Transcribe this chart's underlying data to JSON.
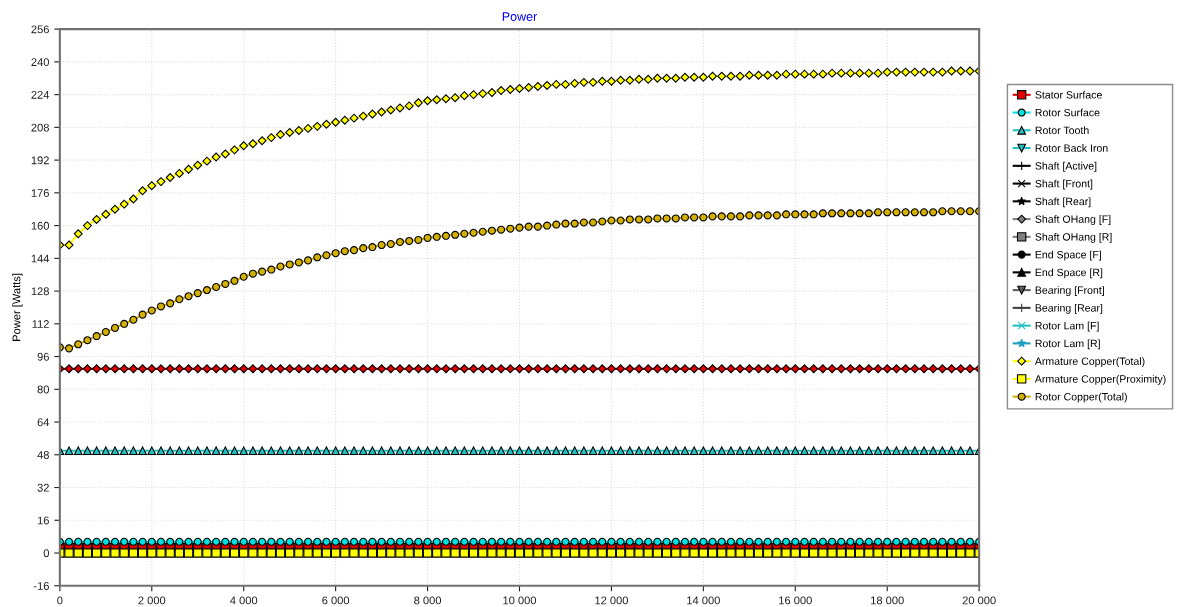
{
  "chart_data": {
    "type": "line",
    "title": "Power",
    "ylabel": "Power [Watts]",
    "x": [
      0,
      200,
      400,
      600,
      800,
      1000,
      1200,
      1400,
      1600,
      1800,
      2000,
      2200,
      2400,
      2600,
      2800,
      3000,
      3200,
      3400,
      3600,
      3800,
      4000,
      4200,
      4400,
      4600,
      4800,
      5000,
      5200,
      5400,
      5600,
      5800,
      6000,
      6200,
      6400,
      6600,
      6800,
      7000,
      7200,
      7400,
      7600,
      7800,
      8000,
      8200,
      8400,
      8600,
      8800,
      9000,
      9200,
      9400,
      9600,
      9800,
      10000,
      10200,
      10400,
      10600,
      10800,
      11000,
      11200,
      11400,
      11600,
      11800,
      12000,
      12200,
      12400,
      12600,
      12800,
      13000,
      13200,
      13400,
      13600,
      13800,
      14000,
      14200,
      14400,
      14600,
      14800,
      15000,
      15200,
      15400,
      15600,
      15800,
      16000,
      16200,
      16400,
      16600,
      16800,
      17000,
      17200,
      17400,
      17600,
      17800,
      18000,
      18200,
      18400,
      18600,
      18800,
      19000,
      19200,
      19400,
      19600,
      19800,
      20000
    ],
    "xlim": [
      0,
      20000
    ],
    "xticks": [
      0,
      {
        "value": 2000,
        "label": "2 000"
      },
      {
        "value": 4000,
        "label": "4 000"
      },
      {
        "value": 6000,
        "label": "6 000"
      },
      {
        "value": 8000,
        "label": "8 000"
      },
      {
        "value": 10000,
        "label": "10 000"
      },
      {
        "value": 12000,
        "label": "12 000"
      },
      {
        "value": 14000,
        "label": "14 000"
      },
      {
        "value": 16000,
        "label": "16 000"
      },
      {
        "value": 18000,
        "label": "18 000"
      },
      {
        "value": 20000,
        "label": "20 000"
      }
    ],
    "ylim": [
      -16,
      256
    ],
    "yticks": [
      -16,
      0,
      16,
      32,
      48,
      64,
      80,
      96,
      112,
      128,
      144,
      160,
      176,
      192,
      208,
      224,
      240,
      256
    ],
    "grid": true,
    "legend": "right",
    "series": [
      {
        "color": "#e00000",
        "marker": "diamond",
        "values": [
          90,
          90,
          90,
          90,
          90,
          90,
          90,
          90,
          90,
          90,
          90,
          90,
          90,
          90,
          90,
          90,
          90,
          90,
          90,
          90,
          90,
          90,
          90,
          90,
          90,
          90,
          90,
          90,
          90,
          90,
          90,
          90,
          90,
          90,
          90,
          90,
          90,
          90,
          90,
          90,
          90,
          90,
          90,
          90,
          90,
          90,
          90,
          90,
          90,
          90,
          90,
          90,
          90,
          90,
          90,
          90,
          90,
          90,
          90,
          90,
          90,
          90,
          90,
          90,
          90,
          90,
          90,
          90,
          90,
          90,
          90,
          90,
          90,
          90,
          90,
          90,
          90,
          90,
          90,
          90,
          90,
          90,
          90,
          90,
          90,
          90,
          90,
          90,
          90,
          90,
          90,
          90,
          90,
          90,
          90,
          90,
          90,
          90,
          90,
          90,
          90
        ]
      },
      {
        "name": "Stator Surface",
        "color": "#e00000",
        "marker": "square",
        "values": [
          3,
          3,
          3,
          3,
          3,
          3,
          3,
          3,
          3,
          3,
          3,
          3,
          3,
          3,
          3,
          3,
          3,
          3,
          3,
          3,
          3,
          3,
          3,
          3,
          3,
          3,
          3,
          3,
          3,
          3,
          3,
          3,
          3,
          3,
          3,
          3,
          3,
          3,
          3,
          3,
          3,
          3,
          3,
          3,
          3,
          3,
          3,
          3,
          3,
          3,
          3,
          3,
          3,
          3,
          3,
          3,
          3,
          3,
          3,
          3,
          3,
          3,
          3,
          3,
          3,
          3,
          3,
          3,
          3,
          3,
          3,
          3,
          3,
          3,
          3,
          3,
          3,
          3,
          3,
          3,
          3,
          3,
          3,
          3,
          3,
          3,
          3,
          3,
          3,
          3,
          3,
          3,
          3,
          3,
          3,
          3,
          3,
          3,
          3,
          3,
          3
        ]
      },
      {
        "name": "Rotor Surface",
        "color": "#00e0e0",
        "marker": "circle",
        "values": [
          5.5,
          5.5,
          5.5,
          5.5,
          5.5,
          5.5,
          5.5,
          5.5,
          5.5,
          5.5,
          5.5,
          5.5,
          5.5,
          5.5,
          5.5,
          5.5,
          5.5,
          5.5,
          5.5,
          5.5,
          5.5,
          5.5,
          5.5,
          5.5,
          5.5,
          5.5,
          5.5,
          5.5,
          5.5,
          5.5,
          5.5,
          5.5,
          5.5,
          5.5,
          5.5,
          5.5,
          5.5,
          5.5,
          5.5,
          5.5,
          5.5,
          5.5,
          5.5,
          5.5,
          5.5,
          5.5,
          5.5,
          5.5,
          5.5,
          5.5,
          5.5,
          5.5,
          5.5,
          5.5,
          5.5,
          5.5,
          5.5,
          5.5,
          5.5,
          5.5,
          5.5,
          5.5,
          5.5,
          5.5,
          5.5,
          5.5,
          5.5,
          5.5,
          5.5,
          5.5,
          5.5,
          5.5,
          5.5,
          5.5,
          5.5,
          5.5,
          5.5,
          5.5,
          5.5,
          5.5,
          5.5,
          5.5,
          5.5,
          5.5,
          5.5,
          5.5,
          5.5,
          5.5,
          5.5,
          5.5,
          5.5,
          5.5,
          5.5,
          5.5,
          5.5,
          5.5,
          5.5,
          5.5,
          5.5,
          5.5,
          5.5
        ]
      },
      {
        "name": "Rotor Tooth",
        "color": "#20c0c0",
        "marker": "triangle",
        "values": [
          50,
          50,
          50,
          50,
          50,
          50,
          50,
          50,
          50,
          50,
          50,
          50,
          50,
          50,
          50,
          50,
          50,
          50,
          50,
          50,
          50,
          50,
          50,
          50,
          50,
          50,
          50,
          50,
          50,
          50,
          50,
          50,
          50,
          50,
          50,
          50,
          50,
          50,
          50,
          50,
          50,
          50,
          50,
          50,
          50,
          50,
          50,
          50,
          50,
          50,
          50,
          50,
          50,
          50,
          50,
          50,
          50,
          50,
          50,
          50,
          50,
          50,
          50,
          50,
          50,
          50,
          50,
          50,
          50,
          50,
          50,
          50,
          50,
          50,
          50,
          50,
          50,
          50,
          50,
          50,
          50,
          50,
          50,
          50,
          50,
          50,
          50,
          50,
          50,
          50,
          50,
          50,
          50,
          50,
          50,
          50,
          50,
          50,
          50,
          50,
          50
        ]
      },
      {
        "name": "Rotor Back Iron",
        "color": "#20c0c0",
        "marker": "triangle_down",
        "values": [
          null,
          null,
          null,
          null,
          null,
          null,
          null,
          null,
          null,
          null,
          null,
          null,
          null,
          null,
          null,
          null,
          null,
          null,
          null,
          null,
          null,
          null,
          null,
          null,
          null,
          null,
          null,
          null,
          null,
          null,
          null,
          null,
          null,
          null,
          null,
          null,
          null,
          null,
          null,
          null,
          null,
          null,
          null,
          null,
          null,
          null,
          null,
          null,
          null,
          null,
          null,
          null,
          null,
          null,
          null,
          null,
          null,
          null,
          null,
          null,
          null,
          null,
          null,
          null,
          null,
          null,
          null,
          null,
          null,
          null,
          null,
          null,
          null,
          null,
          null,
          null,
          null,
          null,
          null,
          null,
          null,
          null,
          null,
          null,
          null,
          null,
          null,
          null,
          null,
          null,
          null,
          null,
          null,
          null,
          null,
          null,
          null,
          null,
          null,
          null,
          null
        ]
      },
      {
        "name": "Shaft [Active]",
        "color": "#000000",
        "marker": "plus",
        "values": [
          null,
          null,
          null,
          null,
          null,
          null,
          null,
          null,
          null,
          null,
          null,
          null,
          null,
          null,
          null,
          null,
          null,
          null,
          null,
          null,
          null,
          null,
          null,
          null,
          null,
          null,
          null,
          null,
          null,
          null,
          null,
          null,
          null,
          null,
          null,
          null,
          null,
          null,
          null,
          null,
          null,
          null,
          null,
          null,
          null,
          null,
          null,
          null,
          null,
          null,
          null,
          null,
          null,
          null,
          null,
          null,
          null,
          null,
          null,
          null,
          null,
          null,
          null,
          null,
          null,
          null,
          null,
          null,
          null,
          null,
          null,
          null,
          null,
          null,
          null,
          null,
          null,
          null,
          null,
          null,
          null,
          null,
          null,
          null,
          null,
          null,
          null,
          null,
          null,
          null,
          null,
          null,
          null,
          null,
          null,
          null,
          null,
          null,
          null,
          null,
          null
        ]
      },
      {
        "name": "Shaft [Front]",
        "color": "#000000",
        "marker": "x",
        "values": [
          null,
          null,
          null,
          null,
          null,
          null,
          null,
          null,
          null,
          null,
          null,
          null,
          null,
          null,
          null,
          null,
          null,
          null,
          null,
          null,
          null,
          null,
          null,
          null,
          null,
          null,
          null,
          null,
          null,
          null,
          null,
          null,
          null,
          null,
          null,
          null,
          null,
          null,
          null,
          null,
          null,
          null,
          null,
          null,
          null,
          null,
          null,
          null,
          null,
          null,
          null,
          null,
          null,
          null,
          null,
          null,
          null,
          null,
          null,
          null,
          null,
          null,
          null,
          null,
          null,
          null,
          null,
          null,
          null,
          null,
          null,
          null,
          null,
          null,
          null,
          null,
          null,
          null,
          null,
          null,
          null,
          null,
          null,
          null,
          null,
          null,
          null,
          null,
          null,
          null,
          null,
          null,
          null,
          null,
          null,
          null,
          null,
          null,
          null,
          null,
          null
        ]
      },
      {
        "name": "Shaft [Rear]",
        "color": "#000000",
        "marker": "star",
        "values": [
          null,
          null,
          null,
          null,
          null,
          null,
          null,
          null,
          null,
          null,
          null,
          null,
          null,
          null,
          null,
          null,
          null,
          null,
          null,
          null,
          null,
          null,
          null,
          null,
          null,
          null,
          null,
          null,
          null,
          null,
          null,
          null,
          null,
          null,
          null,
          null,
          null,
          null,
          null,
          null,
          null,
          null,
          null,
          null,
          null,
          null,
          null,
          null,
          null,
          null,
          null,
          null,
          null,
          null,
          null,
          null,
          null,
          null,
          null,
          null,
          null,
          null,
          null,
          null,
          null,
          null,
          null,
          null,
          null,
          null,
          null,
          null,
          null,
          null,
          null,
          null,
          null,
          null,
          null,
          null,
          null,
          null,
          null,
          null,
          null,
          null,
          null,
          null,
          null,
          null,
          null,
          null,
          null,
          null,
          null,
          null,
          null,
          null,
          null,
          null,
          null
        ]
      },
      {
        "name": "Shaft OHang [F]",
        "color": "#808080",
        "marker": "diamond",
        "values": [
          null,
          null,
          null,
          null,
          null,
          null,
          null,
          null,
          null,
          null,
          null,
          null,
          null,
          null,
          null,
          null,
          null,
          null,
          null,
          null,
          null,
          null,
          null,
          null,
          null,
          null,
          null,
          null,
          null,
          null,
          null,
          null,
          null,
          null,
          null,
          null,
          null,
          null,
          null,
          null,
          null,
          null,
          null,
          null,
          null,
          null,
          null,
          null,
          null,
          null,
          null,
          null,
          null,
          null,
          null,
          null,
          null,
          null,
          null,
          null,
          null,
          null,
          null,
          null,
          null,
          null,
          null,
          null,
          null,
          null,
          null,
          null,
          null,
          null,
          null,
          null,
          null,
          null,
          null,
          null,
          null,
          null,
          null,
          null,
          null,
          null,
          null,
          null,
          null,
          null,
          null,
          null,
          null,
          null,
          null,
          null,
          null,
          null,
          null,
          null,
          null
        ]
      },
      {
        "name": "Shaft OHang [R]",
        "color": "#808080",
        "marker": "square",
        "values": [
          null,
          null,
          null,
          null,
          null,
          null,
          null,
          null,
          null,
          null,
          null,
          null,
          null,
          null,
          null,
          null,
          null,
          null,
          null,
          null,
          null,
          null,
          null,
          null,
          null,
          null,
          null,
          null,
          null,
          null,
          null,
          null,
          null,
          null,
          null,
          null,
          null,
          null,
          null,
          null,
          null,
          null,
          null,
          null,
          null,
          null,
          null,
          null,
          null,
          null,
          null,
          null,
          null,
          null,
          null,
          null,
          null,
          null,
          null,
          null,
          null,
          null,
          null,
          null,
          null,
          null,
          null,
          null,
          null,
          null,
          null,
          null,
          null,
          null,
          null,
          null,
          null,
          null,
          null,
          null,
          null,
          null,
          null,
          null,
          null,
          null,
          null,
          null,
          null,
          null,
          null,
          null,
          null,
          null,
          null,
          null,
          null,
          null,
          null,
          null,
          null
        ]
      },
      {
        "name": "End Space [F]",
        "color": "#000000",
        "marker": "circle",
        "values": [
          null,
          null,
          null,
          null,
          null,
          null,
          null,
          null,
          null,
          null,
          null,
          null,
          null,
          null,
          null,
          null,
          null,
          null,
          null,
          null,
          null,
          null,
          null,
          null,
          null,
          null,
          null,
          null,
          null,
          null,
          null,
          null,
          null,
          null,
          null,
          null,
          null,
          null,
          null,
          null,
          null,
          null,
          null,
          null,
          null,
          null,
          null,
          null,
          null,
          null,
          null,
          null,
          null,
          null,
          null,
          null,
          null,
          null,
          null,
          null,
          null,
          null,
          null,
          null,
          null,
          null,
          null,
          null,
          null,
          null,
          null,
          null,
          null,
          null,
          null,
          null,
          null,
          null,
          null,
          null,
          null,
          null,
          null,
          null,
          null,
          null,
          null,
          null,
          null,
          null,
          null,
          null,
          null,
          null,
          null,
          null,
          null,
          null,
          null,
          null,
          null
        ]
      },
      {
        "name": "End Space [R]",
        "color": "#000000",
        "marker": "triangle",
        "values": [
          null,
          null,
          null,
          null,
          null,
          null,
          null,
          null,
          null,
          null,
          null,
          null,
          null,
          null,
          null,
          null,
          null,
          null,
          null,
          null,
          null,
          null,
          null,
          null,
          null,
          null,
          null,
          null,
          null,
          null,
          null,
          null,
          null,
          null,
          null,
          null,
          null,
          null,
          null,
          null,
          null,
          null,
          null,
          null,
          null,
          null,
          null,
          null,
          null,
          null,
          null,
          null,
          null,
          null,
          null,
          null,
          null,
          null,
          null,
          null,
          null,
          null,
          null,
          null,
          null,
          null,
          null,
          null,
          null,
          null,
          null,
          null,
          null,
          null,
          null,
          null,
          null,
          null,
          null,
          null,
          null,
          null,
          null,
          null,
          null,
          null,
          null,
          null,
          null,
          null,
          null,
          null,
          null,
          null,
          null,
          null,
          null,
          null,
          null,
          null,
          null
        ]
      },
      {
        "name": "Bearing [Front]",
        "color": "#606060",
        "marker": "triangle_down",
        "values": [
          null,
          null,
          null,
          null,
          null,
          null,
          null,
          null,
          null,
          null,
          null,
          null,
          null,
          null,
          null,
          null,
          null,
          null,
          null,
          null,
          null,
          null,
          null,
          null,
          null,
          null,
          null,
          null,
          null,
          null,
          null,
          null,
          null,
          null,
          null,
          null,
          null,
          null,
          null,
          null,
          null,
          null,
          null,
          null,
          null,
          null,
          null,
          null,
          null,
          null,
          null,
          null,
          null,
          null,
          null,
          null,
          null,
          null,
          null,
          null,
          null,
          null,
          null,
          null,
          null,
          null,
          null,
          null,
          null,
          null,
          null,
          null,
          null,
          null,
          null,
          null,
          null,
          null,
          null,
          null,
          null,
          null,
          null,
          null,
          null,
          null,
          null,
          null,
          null,
          null,
          null,
          null,
          null,
          null,
          null,
          null,
          null,
          null,
          null,
          null,
          null
        ]
      },
      {
        "name": "Bearing [Rear]",
        "color": "#404040",
        "marker": "plus",
        "values": [
          null,
          null,
          null,
          null,
          null,
          null,
          null,
          null,
          null,
          null,
          null,
          null,
          null,
          null,
          null,
          null,
          null,
          null,
          null,
          null,
          null,
          null,
          null,
          null,
          null,
          null,
          null,
          null,
          null,
          null,
          null,
          null,
          null,
          null,
          null,
          null,
          null,
          null,
          null,
          null,
          null,
          null,
          null,
          null,
          null,
          null,
          null,
          null,
          null,
          null,
          null,
          null,
          null,
          null,
          null,
          null,
          null,
          null,
          null,
          null,
          null,
          null,
          null,
          null,
          null,
          null,
          null,
          null,
          null,
          null,
          null,
          null,
          null,
          null,
          null,
          null,
          null,
          null,
          null,
          null,
          null,
          null,
          null,
          null,
          null,
          null,
          null,
          null,
          null,
          null,
          null,
          null,
          null,
          null,
          null,
          null,
          null,
          null,
          null,
          null,
          null
        ]
      },
      {
        "name": "Rotor Lam [F]",
        "color": "#20c0c0",
        "marker": "x",
        "values": [
          null,
          null,
          null,
          null,
          null,
          null,
          null,
          null,
          null,
          null,
          null,
          null,
          null,
          null,
          null,
          null,
          null,
          null,
          null,
          null,
          null,
          null,
          null,
          null,
          null,
          null,
          null,
          null,
          null,
          null,
          null,
          null,
          null,
          null,
          null,
          null,
          null,
          null,
          null,
          null,
          null,
          null,
          null,
          null,
          null,
          null,
          null,
          null,
          null,
          null,
          null,
          null,
          null,
          null,
          null,
          null,
          null,
          null,
          null,
          null,
          null,
          null,
          null,
          null,
          null,
          null,
          null,
          null,
          null,
          null,
          null,
          null,
          null,
          null,
          null,
          null,
          null,
          null,
          null,
          null,
          null,
          null,
          null,
          null,
          null,
          null,
          null,
          null,
          null,
          null,
          null,
          null,
          null,
          null,
          null,
          null,
          null,
          null,
          null,
          null,
          null
        ]
      },
      {
        "name": "Rotor Lam [R]",
        "color": "#20a0c0",
        "marker": "star",
        "values": [
          null,
          null,
          null,
          null,
          null,
          null,
          null,
          null,
          null,
          null,
          null,
          null,
          null,
          null,
          null,
          null,
          null,
          null,
          null,
          null,
          null,
          null,
          null,
          null,
          null,
          null,
          null,
          null,
          null,
          null,
          null,
          null,
          null,
          null,
          null,
          null,
          null,
          null,
          null,
          null,
          null,
          null,
          null,
          null,
          null,
          null,
          null,
          null,
          null,
          null,
          null,
          null,
          null,
          null,
          null,
          null,
          null,
          null,
          null,
          null,
          null,
          null,
          null,
          null,
          null,
          null,
          null,
          null,
          null,
          null,
          null,
          null,
          null,
          null,
          null,
          null,
          null,
          null,
          null,
          null,
          null,
          null,
          null,
          null,
          null,
          null,
          null,
          null,
          null,
          null,
          null,
          null,
          null,
          null,
          null,
          null,
          null,
          null,
          null,
          null,
          null
        ]
      },
      {
        "name": "Armature Copper(Total)",
        "color": "#ffff00",
        "marker": "diamond",
        "values": [
          150.5,
          150.5,
          156,
          160,
          163,
          165.5,
          168,
          170.5,
          173,
          177,
          179.5,
          181.5,
          183.5,
          185.5,
          187.5,
          189.5,
          191.5,
          193.5,
          195,
          197,
          199,
          200,
          201.5,
          203,
          204.5,
          205.5,
          206.5,
          207.5,
          208.5,
          209.5,
          210.5,
          211.5,
          212.5,
          213.5,
          214.5,
          215.5,
          216.5,
          217.5,
          218.5,
          220,
          221,
          221.5,
          222,
          222.5,
          223.5,
          224,
          224.5,
          225,
          226,
          226.5,
          227,
          227.5,
          228,
          228.5,
          229,
          229,
          229.5,
          230,
          230,
          230.5,
          230.5,
          231,
          231,
          231.5,
          231.5,
          232,
          232,
          232,
          232.5,
          232.5,
          232.5,
          233,
          233,
          233,
          233,
          233.5,
          233.5,
          233.5,
          233.5,
          234,
          234,
          234,
          234,
          234,
          234.5,
          234.5,
          234.5,
          234.5,
          234.5,
          234.5,
          235,
          235,
          235,
          235,
          235,
          235,
          235,
          235.5,
          235.5,
          235.5,
          235.5
        ]
      },
      {
        "name": "Armature Copper(Proximity)",
        "color": "#ffff00",
        "marker": "square",
        "values": [
          0,
          0,
          0,
          0,
          0,
          0,
          0,
          0,
          0,
          0,
          0,
          0,
          0,
          0,
          0,
          0,
          0,
          0,
          0,
          0,
          0,
          0,
          0,
          0,
          0,
          0,
          0,
          0,
          0,
          0,
          0,
          0,
          0,
          0,
          0,
          0,
          0,
          0,
          0,
          0,
          0,
          0,
          0,
          0,
          0,
          0,
          0,
          0,
          0,
          0,
          0,
          0,
          0,
          0,
          0,
          0,
          0,
          0,
          0,
          0,
          0,
          0,
          0,
          0,
          0,
          0,
          0,
          0,
          0,
          0,
          0,
          0,
          0,
          0,
          0,
          0,
          0,
          0,
          0,
          0,
          0,
          0,
          0,
          0,
          0,
          0,
          0,
          0,
          0,
          0,
          0,
          0,
          0,
          0,
          0,
          0,
          0,
          0,
          0,
          0,
          0
        ]
      },
      {
        "name": "Rotor Copper(Total)",
        "color": "#d4b000",
        "marker": "circle",
        "values": [
          100.5,
          100,
          102,
          104,
          106,
          108,
          110,
          112,
          114,
          116.5,
          118.5,
          120.5,
          122,
          124,
          125.5,
          127,
          128.5,
          130,
          131.5,
          133,
          135,
          136.5,
          137.5,
          138.5,
          140,
          141,
          142,
          143,
          144.5,
          145.5,
          146.5,
          147.5,
          148,
          149,
          149.5,
          150.5,
          151,
          152,
          152.5,
          153,
          154,
          154.5,
          155,
          155.5,
          156,
          156.5,
          157,
          157.5,
          158,
          158.5,
          159,
          159.5,
          159.5,
          160,
          160.5,
          161,
          161,
          161.5,
          161.5,
          162,
          162.5,
          162.5,
          163,
          163,
          163,
          163.5,
          163.5,
          163.5,
          164,
          164,
          164,
          164.5,
          164.5,
          164.5,
          164.5,
          165,
          165,
          165,
          165,
          165.5,
          165.5,
          165.5,
          165.5,
          166,
          166,
          166,
          166,
          166,
          166,
          166.5,
          166.5,
          166.5,
          166.5,
          166.5,
          166.5,
          166.5,
          167,
          167,
          167,
          167,
          167
        ]
      }
    ]
  }
}
